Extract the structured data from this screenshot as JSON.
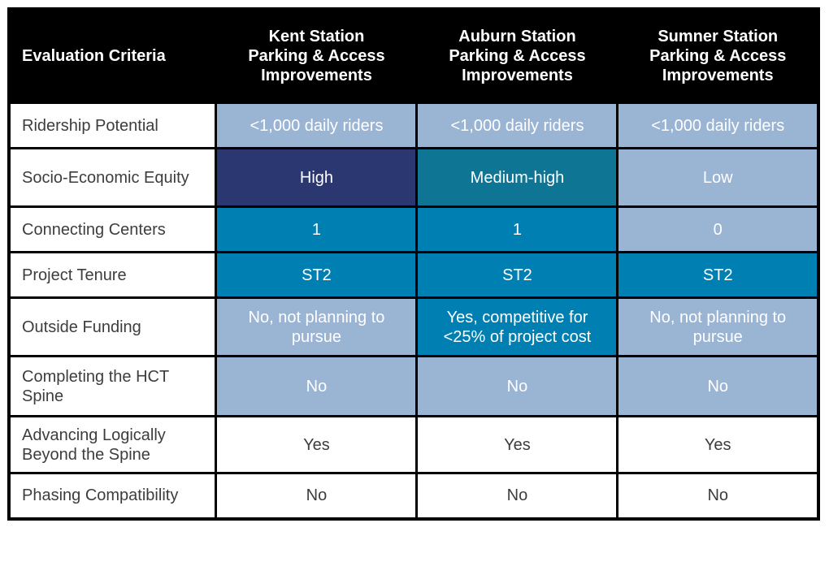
{
  "colors": {
    "header_bg": "#000000",
    "header_text": "#ffffff",
    "grid_line": "#000000",
    "light_blue_cell": "#9ab4d4",
    "navy_cell": "#2b3770",
    "teal_cell": "#0e7694",
    "blue_cell": "#007fb2",
    "white_cell": "#ffffff",
    "dark_text": "#3d3d3d",
    "cell_text": "#ffffff"
  },
  "table": {
    "header": {
      "criteria_label": "Evaluation Criteria",
      "columns": [
        "Kent Station\nParking & Access\nImprovements",
        "Auburn Station\nParking & Access\nImprovements",
        "Sumner Station\nParking & Access\nImprovements"
      ]
    },
    "rows": [
      {
        "criteria": "Ridership Potential",
        "cells": [
          {
            "text": "<1,000 daily riders",
            "tone": "light"
          },
          {
            "text": "<1,000 daily riders",
            "tone": "light"
          },
          {
            "text": "<1,000 daily riders",
            "tone": "light"
          }
        ]
      },
      {
        "criteria": "Socio-Economic Equity",
        "cells": [
          {
            "text": "High",
            "tone": "navy"
          },
          {
            "text": "Medium-high",
            "tone": "teal"
          },
          {
            "text": "Low",
            "tone": "light"
          }
        ]
      },
      {
        "criteria": "Connecting Centers",
        "cells": [
          {
            "text": "1",
            "tone": "blue"
          },
          {
            "text": "1",
            "tone": "blue"
          },
          {
            "text": "0",
            "tone": "light"
          }
        ]
      },
      {
        "criteria": "Project Tenure",
        "cells": [
          {
            "text": "ST2",
            "tone": "blue"
          },
          {
            "text": "ST2",
            "tone": "blue"
          },
          {
            "text": "ST2",
            "tone": "blue"
          }
        ]
      },
      {
        "criteria": "Outside Funding",
        "cells": [
          {
            "text": "No, not planning to pursue",
            "tone": "light"
          },
          {
            "text": "Yes, competitive for <25% of project cost",
            "tone": "blue"
          },
          {
            "text": "No, not planning to pursue",
            "tone": "light"
          }
        ]
      },
      {
        "criteria": "Completing the HCT Spine",
        "cells": [
          {
            "text": "No",
            "tone": "light"
          },
          {
            "text": "No",
            "tone": "light"
          },
          {
            "text": "No",
            "tone": "light"
          }
        ]
      },
      {
        "criteria": "Advancing Logically Beyond the Spine",
        "cells": [
          {
            "text": "Yes",
            "tone": "white"
          },
          {
            "text": "Yes",
            "tone": "white"
          },
          {
            "text": "Yes",
            "tone": "white"
          }
        ]
      },
      {
        "criteria": "Phasing Compatibility",
        "cells": [
          {
            "text": "No",
            "tone": "white"
          },
          {
            "text": "No",
            "tone": "white"
          },
          {
            "text": "No",
            "tone": "white"
          }
        ]
      }
    ]
  }
}
